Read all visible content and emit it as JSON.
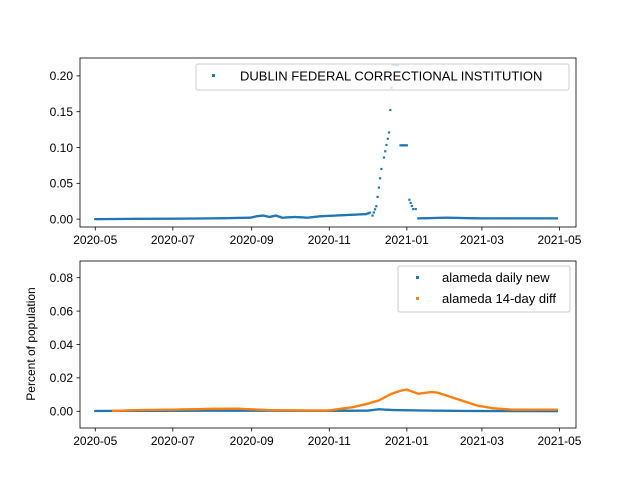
{
  "chart_data": [
    {
      "type": "scatter",
      "x_ticks": [
        "2020-05",
        "2020-07",
        "2020-09",
        "2020-11",
        "2021-01",
        "2021-03",
        "2021-05"
      ],
      "y_ticks": [
        "0.00",
        "0.05",
        "0.10",
        "0.15",
        "0.20"
      ],
      "xlim": [
        "2020-04-19",
        "2021-05-14"
      ],
      "ylim": [
        -0.011,
        0.225
      ],
      "ylabel": "",
      "legend_position": "top-right",
      "series": [
        {
          "name": "DUBLIN FEDERAL CORRECTIONAL INSTITUTION",
          "color": "#1f77b4",
          "points": [
            [
              "2020-05-01",
              0.0
            ],
            [
              "2020-08-01",
              0.001
            ],
            [
              "2020-08-31",
              0.002
            ],
            [
              "2020-09-05",
              0.004
            ],
            [
              "2020-09-10",
              0.005
            ],
            [
              "2020-09-15",
              0.003
            ],
            [
              "2020-09-20",
              0.005
            ],
            [
              "2020-09-25",
              0.002
            ],
            [
              "2020-10-05",
              0.003
            ],
            [
              "2020-10-15",
              0.002
            ],
            [
              "2020-10-25",
              0.004
            ],
            [
              "2020-11-30",
              0.007
            ],
            [
              "2020-12-03",
              0.009
            ],
            [
              "2020-12-05",
              0.005
            ],
            [
              "2020-12-08",
              0.018
            ],
            [
              "2020-12-12",
              0.07
            ],
            [
              "2020-12-14",
              0.086
            ],
            [
              "2020-12-18",
              0.121
            ],
            [
              "2020-12-21",
              0.215
            ],
            [
              "2020-12-23",
              0.215
            ],
            [
              "2020-12-24",
              0.215
            ],
            [
              "2020-12-25",
              0.215
            ],
            [
              "2020-12-27",
              0.103
            ],
            [
              "2020-12-28",
              0.103
            ],
            [
              "2020-12-29",
              0.103
            ],
            [
              "2020-12-30",
              0.103
            ],
            [
              "2020-12-31",
              0.103
            ],
            [
              "2021-01-01",
              0.103
            ],
            [
              "2021-01-03",
              0.027
            ],
            [
              "2021-01-06",
              0.014
            ],
            [
              "2021-01-08",
              0.014
            ],
            [
              "2021-01-10",
              0.001
            ],
            [
              "2021-02-01",
              0.002
            ],
            [
              "2021-02-28",
              0.001
            ],
            [
              "2021-04-29",
              0.001
            ]
          ]
        }
      ]
    },
    {
      "type": "scatter",
      "x_ticks": [
        "2020-05",
        "2020-07",
        "2020-09",
        "2020-11",
        "2021-01",
        "2021-03",
        "2021-05"
      ],
      "y_ticks": [
        "0.00",
        "0.02",
        "0.04",
        "0.06",
        "0.08"
      ],
      "xlim": [
        "2020-04-19",
        "2021-05-14"
      ],
      "ylim": [
        -0.01,
        0.09
      ],
      "ylabel": "Percent of population",
      "legend_position": "top-right",
      "series": [
        {
          "name": "alameda daily new",
          "color": "#1f77b4",
          "points": [
            [
              "2020-05-01",
              0.0002
            ],
            [
              "2020-07-01",
              0.0003
            ],
            [
              "2020-08-01",
              0.0004
            ],
            [
              "2020-11-01",
              0.0003
            ],
            [
              "2020-12-01",
              0.0004
            ],
            [
              "2020-12-10",
              0.0012
            ],
            [
              "2020-12-20",
              0.0008
            ],
            [
              "2021-01-01",
              0.0006
            ],
            [
              "2021-01-10",
              0.0005
            ],
            [
              "2021-01-25",
              0.0004
            ],
            [
              "2021-02-15",
              0.0002
            ],
            [
              "2021-04-29",
              0.0001
            ]
          ]
        },
        {
          "name": "alameda 14-day diff",
          "color": "#ff7f0e",
          "points": [
            [
              "2020-05-15",
              0.0002
            ],
            [
              "2020-06-01",
              0.0007
            ],
            [
              "2020-07-01",
              0.001
            ],
            [
              "2020-08-01",
              0.0015
            ],
            [
              "2020-08-20",
              0.0016
            ],
            [
              "2020-09-15",
              0.0007
            ],
            [
              "2020-10-15",
              0.0005
            ],
            [
              "2020-11-01",
              0.0005
            ],
            [
              "2020-11-10",
              0.0015
            ],
            [
              "2020-11-20",
              0.0025
            ],
            [
              "2020-12-01",
              0.0045
            ],
            [
              "2020-12-10",
              0.0065
            ],
            [
              "2020-12-20",
              0.0105
            ],
            [
              "2020-12-28",
              0.0125
            ],
            [
              "2021-01-01",
              0.013
            ],
            [
              "2021-01-10",
              0.0105
            ],
            [
              "2021-01-20",
              0.0115
            ],
            [
              "2021-01-25",
              0.0112
            ],
            [
              "2021-02-05",
              0.0085
            ],
            [
              "2021-02-15",
              0.006
            ],
            [
              "2021-02-25",
              0.0035
            ],
            [
              "2021-03-10",
              0.0018
            ],
            [
              "2021-03-25",
              0.001
            ],
            [
              "2021-04-29",
              0.001
            ]
          ]
        }
      ]
    }
  ]
}
